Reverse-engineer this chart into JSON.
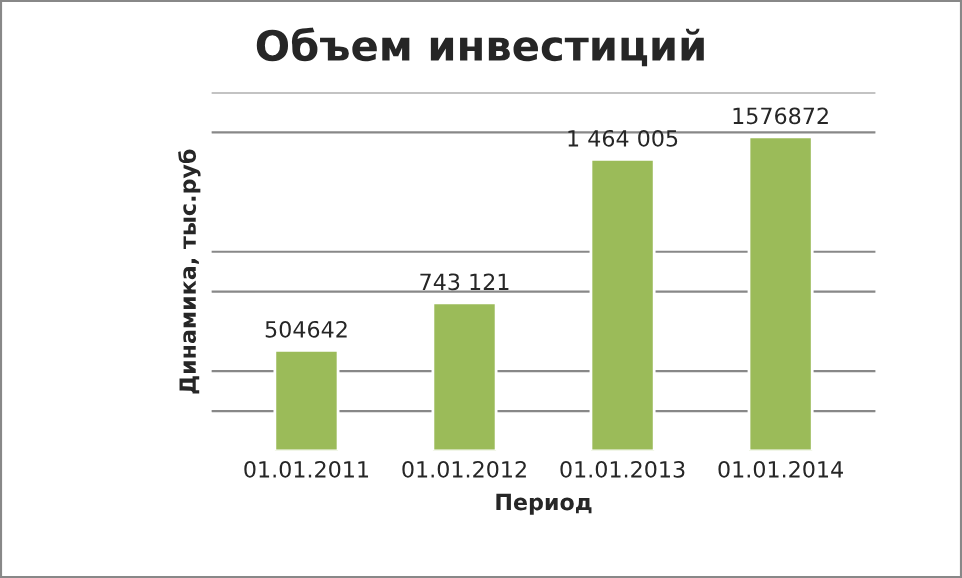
{
  "chart_data": {
    "type": "bar",
    "title": "Объем инвестиций",
    "xlabel": "Период",
    "ylabel": "Динамика, тыс.руб",
    "categories": [
      "01.01.2011",
      "01.01.2012",
      "01.01.2013",
      "01.01.2014"
    ],
    "values": [
      504642,
      743121,
      1464005,
      1576872
    ],
    "value_labels": [
      "504642",
      "743 121",
      "1 464 005",
      "1576872"
    ],
    "color": "#9bbb59",
    "ylim": [
      0,
      1800000
    ],
    "yticks": [
      {
        "value": 200000,
        "label": null
      },
      {
        "value": 400000,
        "label": null
      },
      {
        "value": 800000,
        "label": null
      },
      {
        "value": 1000000,
        "label": null
      },
      {
        "value": 1600000,
        "label": null
      },
      {
        "value": 1800000,
        "label": null
      }
    ],
    "grid": "y",
    "tick_labels": "x",
    "legend": false
  }
}
